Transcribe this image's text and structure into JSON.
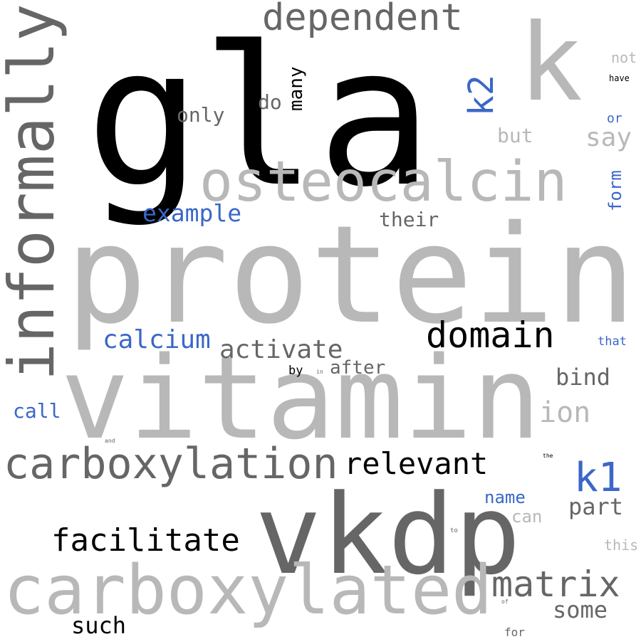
{
  "colors": {
    "black": "#000000",
    "dark_gray": "#666666",
    "light_gray": "#b8b8b8",
    "blue": "#3a67c8"
  },
  "words": [
    {
      "text": "protein",
      "weight": 1.0,
      "color": "light_gray"
    },
    {
      "text": "gla",
      "weight": 0.95,
      "color": "black"
    },
    {
      "text": "vitamin",
      "weight": 0.9,
      "color": "light_gray"
    },
    {
      "text": "vkdp",
      "weight": 0.85,
      "color": "dark_gray"
    },
    {
      "text": "k",
      "weight": 0.8,
      "color": "light_gray"
    },
    {
      "text": "carboxylated",
      "weight": 0.7,
      "color": "light_gray"
    },
    {
      "text": "informally",
      "weight": 0.7,
      "color": "dark_gray"
    },
    {
      "text": "osteocalcin",
      "weight": 0.6,
      "color": "light_gray"
    },
    {
      "text": "carboxylation",
      "weight": 0.5,
      "color": "dark_gray"
    },
    {
      "text": "dependent",
      "weight": 0.45,
      "color": "dark_gray"
    },
    {
      "text": "domain",
      "weight": 0.4,
      "color": "black"
    },
    {
      "text": "matrix",
      "weight": 0.4,
      "color": "dark_gray"
    },
    {
      "text": "facilitate",
      "weight": 0.38,
      "color": "black"
    },
    {
      "text": "relevant",
      "weight": 0.36,
      "color": "black"
    },
    {
      "text": "k1",
      "weight": 0.45,
      "color": "blue"
    },
    {
      "text": "k2",
      "weight": 0.4,
      "color": "blue"
    },
    {
      "text": "activate",
      "weight": 0.3,
      "color": "dark_gray"
    },
    {
      "text": "calcium",
      "weight": 0.3,
      "color": "blue"
    },
    {
      "text": "example",
      "weight": 0.28,
      "color": "blue"
    },
    {
      "text": "ion",
      "weight": 0.32,
      "color": "light_gray"
    },
    {
      "text": "bind",
      "weight": 0.28,
      "color": "dark_gray"
    },
    {
      "text": "say",
      "weight": 0.3,
      "color": "light_gray"
    },
    {
      "text": "part",
      "weight": 0.26,
      "color": "dark_gray"
    },
    {
      "text": "some",
      "weight": 0.26,
      "color": "dark_gray"
    },
    {
      "text": "such",
      "weight": 0.26,
      "color": "black"
    },
    {
      "text": "their",
      "weight": 0.24,
      "color": "dark_gray"
    },
    {
      "text": "only",
      "weight": 0.22,
      "color": "dark_gray"
    },
    {
      "text": "do",
      "weight": 0.24,
      "color": "dark_gray"
    },
    {
      "text": "many",
      "weight": 0.2,
      "color": "black"
    },
    {
      "text": "but",
      "weight": 0.22,
      "color": "light_gray"
    },
    {
      "text": "after",
      "weight": 0.22,
      "color": "dark_gray"
    },
    {
      "text": "call",
      "weight": 0.22,
      "color": "blue"
    },
    {
      "text": "name",
      "weight": 0.2,
      "color": "blue"
    },
    {
      "text": "can",
      "weight": 0.2,
      "color": "light_gray"
    },
    {
      "text": "form",
      "weight": 0.18,
      "color": "blue"
    },
    {
      "text": "not",
      "weight": 0.16,
      "color": "light_gray"
    },
    {
      "text": "or",
      "weight": 0.14,
      "color": "blue"
    },
    {
      "text": "that",
      "weight": 0.14,
      "color": "blue"
    },
    {
      "text": "this",
      "weight": 0.16,
      "color": "light_gray"
    },
    {
      "text": "by",
      "weight": 0.14,
      "color": "black"
    },
    {
      "text": "for",
      "weight": 0.12,
      "color": "dark_gray"
    },
    {
      "text": "have",
      "weight": 0.1,
      "color": "black"
    },
    {
      "text": "in",
      "weight": 0.06,
      "color": "dark_gray"
    },
    {
      "text": "and",
      "weight": 0.06,
      "color": "dark_gray"
    },
    {
      "text": "the",
      "weight": 0.06,
      "color": "black"
    },
    {
      "text": "to",
      "weight": 0.06,
      "color": "dark_gray"
    },
    {
      "text": "of",
      "weight": 0.06,
      "color": "dark_gray"
    }
  ]
}
